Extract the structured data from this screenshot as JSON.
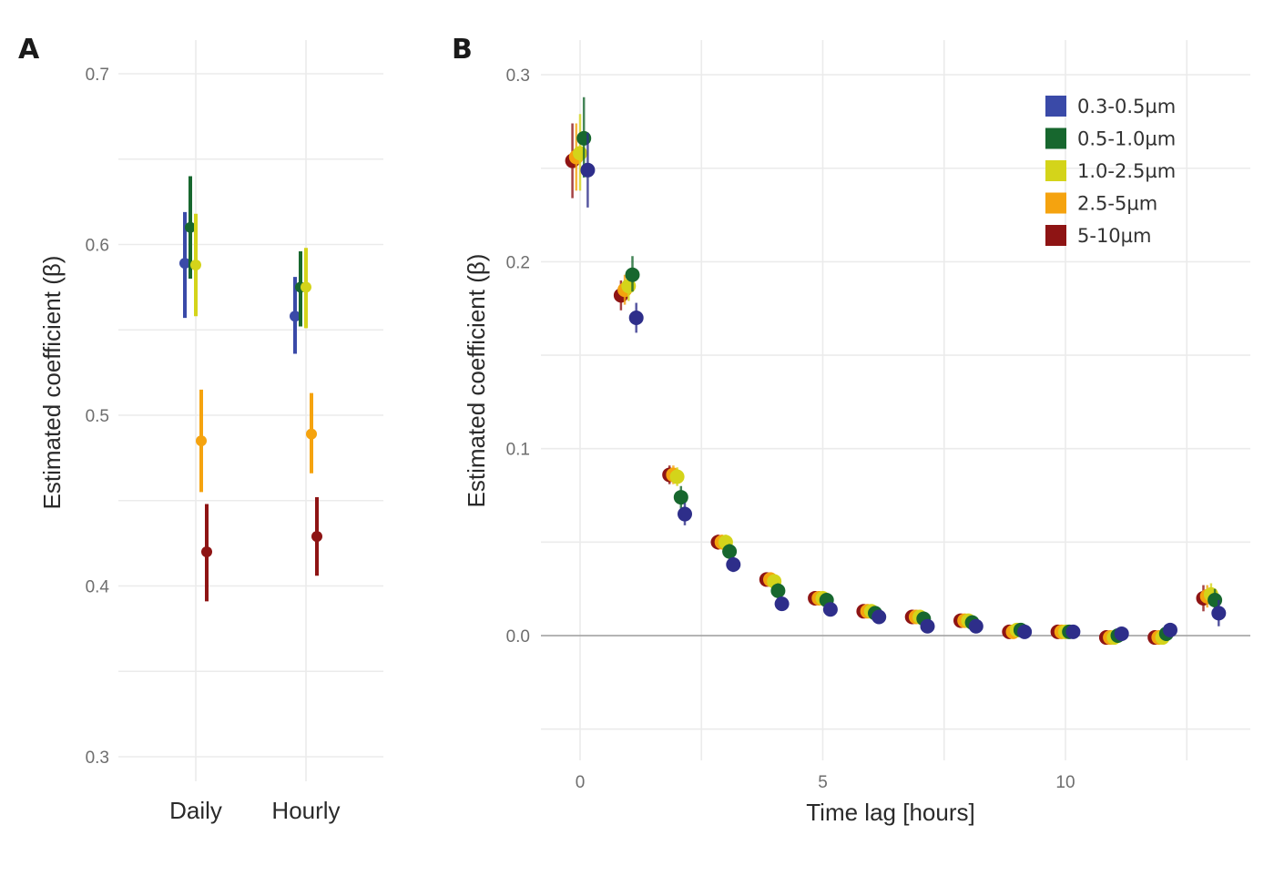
{
  "figure": {
    "panel_a_label": "A",
    "panel_b_label": "B"
  },
  "legend": {
    "items": [
      {
        "label": "0.3-0.5µm",
        "color": "#3a4aa8"
      },
      {
        "label": "0.5-1.0µm",
        "color": "#17672e"
      },
      {
        "label": "1.0-2.5µm",
        "color": "#d4d41a"
      },
      {
        "label": "2.5-5µm",
        "color": "#f5a30f"
      },
      {
        "label": "5-10µm",
        "color": "#8e1414"
      }
    ]
  },
  "chart_data": [
    {
      "type": "scatter",
      "subtype": "pointrange",
      "panel": "A",
      "title": "",
      "xlabel": "",
      "ylabel": "Estimated coefficient (β)",
      "ylim": [
        0.3,
        0.7
      ],
      "yticks": [
        "0.3",
        "0.4",
        "0.5",
        "0.6",
        "0.7"
      ],
      "categories": [
        "Daily",
        "Hourly"
      ],
      "grid": true,
      "series": [
        {
          "name": "0.3-0.5µm",
          "color": "#3a4aa8",
          "values": [
            0.589,
            0.558
          ],
          "lower": [
            0.557,
            0.536
          ],
          "upper": [
            0.619,
            0.581
          ]
        },
        {
          "name": "0.5-1.0µm",
          "color": "#17672e",
          "values": [
            0.61,
            0.575
          ],
          "lower": [
            0.58,
            0.552
          ],
          "upper": [
            0.64,
            0.596
          ]
        },
        {
          "name": "1.0-2.5µm",
          "color": "#d4d41a",
          "values": [
            0.588,
            0.575
          ],
          "lower": [
            0.558,
            0.551
          ],
          "upper": [
            0.618,
            0.598
          ]
        },
        {
          "name": "2.5-5µm",
          "color": "#f5a30f",
          "values": [
            0.485,
            0.489
          ],
          "lower": [
            0.455,
            0.466
          ],
          "upper": [
            0.515,
            0.513
          ]
        },
        {
          "name": "5-10µm",
          "color": "#8e1414",
          "values": [
            0.42,
            0.429
          ],
          "lower": [
            0.391,
            0.406
          ],
          "upper": [
            0.448,
            0.452
          ]
        }
      ]
    },
    {
      "type": "scatter",
      "subtype": "pointrange",
      "panel": "B",
      "title": "",
      "xlabel": "Time lag [hours]",
      "ylabel": "Estimated coefficient (β)",
      "xlim": [
        -0.8,
        13.8
      ],
      "ylim": [
        -0.07,
        0.31
      ],
      "xticks": [
        "0",
        "5",
        "10"
      ],
      "yticks": [
        "0.0",
        "0.1",
        "0.2",
        "0.3"
      ],
      "grid": true,
      "legend_position": "top-right",
      "x": [
        0,
        1,
        2,
        3,
        4,
        5,
        6,
        7,
        8,
        9,
        10,
        11,
        12,
        13
      ],
      "series": [
        {
          "name": "5-10µm",
          "color": "#8e1414",
          "values": [
            0.254,
            0.182,
            0.086,
            0.05,
            0.03,
            0.02,
            0.013,
            0.01,
            0.008,
            0.002,
            0.002,
            -0.001,
            -0.001,
            0.02
          ],
          "lower": [
            0.234,
            0.174,
            0.081,
            0.046,
            0.027,
            0.017,
            0.01,
            0.007,
            0.005,
            -0.001,
            -0.001,
            -0.004,
            -0.004,
            0.013
          ],
          "upper": [
            0.274,
            0.19,
            0.091,
            0.054,
            0.033,
            0.023,
            0.016,
            0.013,
            0.011,
            0.005,
            0.005,
            0.002,
            0.002,
            0.027
          ]
        },
        {
          "name": "2.5-5µm",
          "color": "#f5a30f",
          "values": [
            0.256,
            0.185,
            0.086,
            0.05,
            0.03,
            0.02,
            0.013,
            0.01,
            0.008,
            0.002,
            0.002,
            -0.001,
            -0.001,
            0.021
          ],
          "lower": [
            0.238,
            0.177,
            0.081,
            0.046,
            0.027,
            0.017,
            0.01,
            0.007,
            0.005,
            -0.001,
            -0.001,
            -0.004,
            -0.004,
            0.015
          ],
          "upper": [
            0.274,
            0.193,
            0.091,
            0.054,
            0.033,
            0.023,
            0.016,
            0.013,
            0.011,
            0.005,
            0.005,
            0.002,
            0.002,
            0.027
          ]
        },
        {
          "name": "1.0-2.5µm",
          "color": "#d4d41a",
          "values": [
            0.258,
            0.187,
            0.085,
            0.05,
            0.029,
            0.02,
            0.013,
            0.01,
            0.008,
            0.003,
            0.002,
            -0.001,
            -0.001,
            0.022
          ],
          "lower": [
            0.238,
            0.179,
            0.08,
            0.046,
            0.026,
            0.017,
            0.01,
            0.007,
            0.005,
            0.0,
            -0.001,
            -0.004,
            -0.004,
            0.016
          ],
          "upper": [
            0.279,
            0.195,
            0.09,
            0.054,
            0.032,
            0.023,
            0.016,
            0.013,
            0.011,
            0.006,
            0.005,
            0.002,
            0.002,
            0.028
          ]
        },
        {
          "name": "0.5-1.0µm",
          "color": "#17672e",
          "values": [
            0.266,
            0.193,
            0.074,
            0.045,
            0.024,
            0.019,
            0.012,
            0.009,
            0.007,
            0.003,
            0.002,
            0.0,
            0.001,
            0.019
          ],
          "lower": [
            0.245,
            0.184,
            0.068,
            0.041,
            0.02,
            0.016,
            0.009,
            0.006,
            0.004,
            0.0,
            -0.001,
            -0.003,
            -0.002,
            0.013
          ],
          "upper": [
            0.288,
            0.203,
            0.08,
            0.049,
            0.028,
            0.022,
            0.015,
            0.012,
            0.01,
            0.006,
            0.005,
            0.003,
            0.004,
            0.025
          ]
        },
        {
          "name": "0.3-0.5µm",
          "color": "#2e2e8a",
          "values": [
            0.249,
            0.17,
            0.065,
            0.038,
            0.017,
            0.014,
            0.01,
            0.005,
            0.005,
            0.002,
            0.002,
            0.001,
            0.003,
            0.012
          ],
          "lower": [
            0.229,
            0.162,
            0.059,
            0.034,
            0.014,
            0.011,
            0.007,
            0.002,
            0.002,
            -0.001,
            -0.001,
            -0.002,
            0.0,
            0.005
          ],
          "upper": [
            0.269,
            0.178,
            0.071,
            0.042,
            0.02,
            0.017,
            0.013,
            0.008,
            0.008,
            0.005,
            0.005,
            0.004,
            0.006,
            0.019
          ]
        }
      ]
    }
  ]
}
